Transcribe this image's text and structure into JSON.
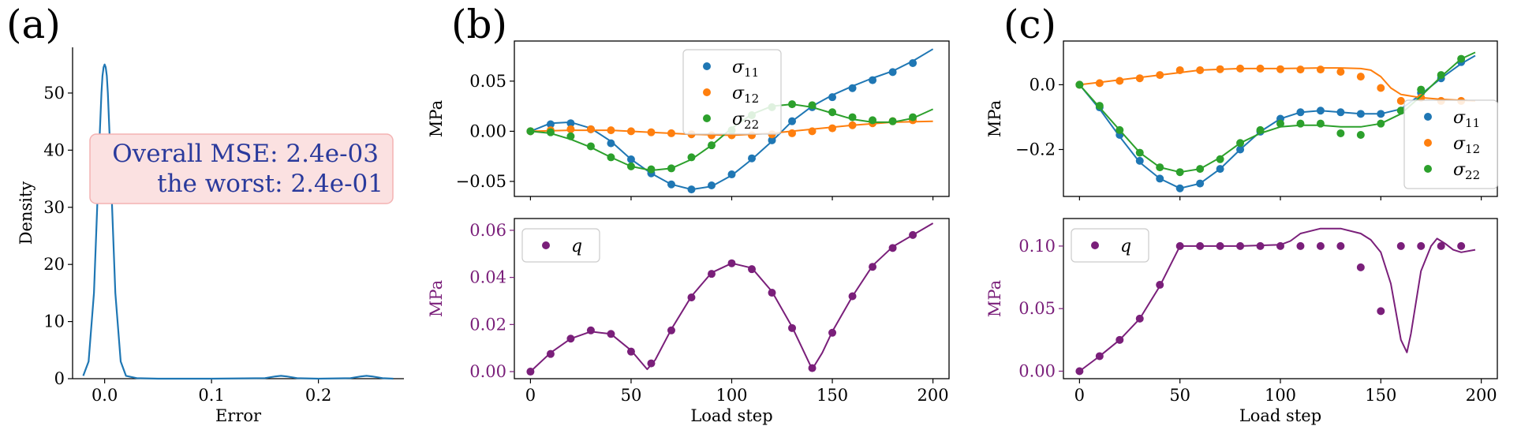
{
  "panel_labels": [
    "(a)",
    "(b)",
    "(c)"
  ],
  "colors": {
    "blue": "#1f77b4",
    "orange": "#ff7f0e",
    "green": "#2ca02c",
    "purple": "#7a1f7a",
    "annotation_fill": "#fbe1e1",
    "annotation_border": "#f4b3b3",
    "annotation_text": "#2a3a9c"
  },
  "chart_data": [
    {
      "id": "a",
      "type": "line",
      "xlabel": "Error",
      "ylabel": "Density",
      "xlim": [
        -0.03,
        0.28
      ],
      "ylim": [
        0,
        58
      ],
      "xticks": [
        0.0,
        0.1,
        0.2
      ],
      "xtick_labels": [
        "0.0",
        "0.1",
        "0.2"
      ],
      "yticks": [
        0,
        10,
        20,
        30,
        40,
        50
      ],
      "grid": false,
      "annotation": [
        "Overall MSE: 2.4e-03",
        "the worst: 2.4e-01"
      ],
      "x": [
        -0.02,
        -0.015,
        -0.01,
        -0.007,
        -0.005,
        -0.003,
        -0.002,
        -0.001,
        0.0,
        0.001,
        0.002,
        0.003,
        0.005,
        0.007,
        0.01,
        0.015,
        0.02,
        0.03,
        0.05,
        0.1,
        0.15,
        0.16,
        0.165,
        0.17,
        0.18,
        0.2,
        0.23,
        0.24,
        0.245,
        0.25,
        0.26,
        0.27
      ],
      "y": [
        0.5,
        3,
        15,
        30,
        41,
        50,
        53,
        54.5,
        55,
        54.5,
        53,
        50,
        41,
        30,
        15,
        3,
        0.5,
        0.1,
        0,
        0,
        0.1,
        0.4,
        0.5,
        0.4,
        0.1,
        0,
        0.1,
        0.4,
        0.5,
        0.4,
        0.1,
        0
      ]
    },
    {
      "id": "b-top",
      "type": "line",
      "ylabel": "MPa",
      "xlim": [
        -8,
        208
      ],
      "ylim": [
        -0.065,
        0.09
      ],
      "yticks": [
        -0.05,
        0.0,
        0.05
      ],
      "ytick_labels": [
        "−0.05",
        "0.00",
        "0.05"
      ],
      "legend_placement": "top-center",
      "series": [
        {
          "name": "σ",
          "sub": "11",
          "color": "blue",
          "line_x": [
            0,
            10,
            20,
            30,
            40,
            50,
            60,
            70,
            80,
            90,
            100,
            110,
            120,
            130,
            140,
            150,
            160,
            170,
            180,
            190,
            200
          ],
          "line_y": [
            0,
            0.008,
            0.009,
            0.003,
            -0.01,
            -0.028,
            -0.042,
            -0.053,
            -0.058,
            -0.055,
            -0.044,
            -0.028,
            -0.01,
            0.01,
            0.025,
            0.036,
            0.045,
            0.053,
            0.06,
            0.07,
            0.082
          ],
          "points_x": [
            0,
            10,
            20,
            30,
            40,
            50,
            60,
            70,
            80,
            90,
            100,
            110,
            120,
            130,
            140,
            150,
            160,
            170,
            180,
            190
          ],
          "points_y": [
            0,
            0.007,
            0.008,
            0.002,
            -0.012,
            -0.028,
            -0.042,
            -0.053,
            -0.058,
            -0.054,
            -0.043,
            -0.027,
            -0.009,
            0.01,
            0.024,
            0.034,
            0.043,
            0.051,
            0.059,
            0.068
          ]
        },
        {
          "name": "σ",
          "sub": "12",
          "color": "orange",
          "line_x": [
            0,
            20,
            40,
            60,
            80,
            100,
            120,
            140,
            160,
            180,
            200
          ],
          "line_y": [
            0,
            0.001,
            0.001,
            -0.001,
            -0.003,
            -0.004,
            -0.002,
            0.002,
            0.006,
            0.009,
            0.01
          ],
          "points_x": [
            0,
            10,
            20,
            30,
            40,
            50,
            60,
            70,
            80,
            90,
            100,
            110,
            120,
            130,
            140,
            150,
            160,
            170,
            180,
            190
          ],
          "points_y": [
            0,
            0.001,
            0.002,
            0.002,
            0.001,
            0,
            -0.001,
            -0.002,
            -0.003,
            -0.004,
            -0.004,
            -0.004,
            -0.003,
            -0.002,
            0,
            0.003,
            0.006,
            0.008,
            0.01,
            0.011
          ]
        },
        {
          "name": "σ",
          "sub": "22",
          "color": "green",
          "line_x": [
            0,
            10,
            20,
            30,
            40,
            50,
            60,
            70,
            80,
            90,
            100,
            110,
            120,
            130,
            140,
            150,
            160,
            170,
            180,
            190,
            200
          ],
          "line_y": [
            0,
            -0.002,
            -0.008,
            -0.016,
            -0.026,
            -0.035,
            -0.039,
            -0.037,
            -0.028,
            -0.014,
            0.003,
            0.017,
            0.025,
            0.027,
            0.024,
            0.018,
            0.012,
            0.009,
            0.009,
            0.013,
            0.022
          ],
          "points_x": [
            0,
            10,
            20,
            30,
            40,
            50,
            60,
            70,
            80,
            90,
            100,
            110,
            120,
            130,
            140,
            150,
            160,
            170,
            180,
            190
          ],
          "points_y": [
            0,
            -0.001,
            -0.005,
            -0.015,
            -0.026,
            -0.035,
            -0.038,
            -0.037,
            -0.026,
            -0.014,
            0.001,
            0.016,
            0.024,
            0.027,
            0.026,
            0.019,
            0.014,
            0.011,
            0.01,
            0.014
          ]
        }
      ]
    },
    {
      "id": "b-bottom",
      "type": "line",
      "xlabel": "Load step",
      "ylabel": "MPa",
      "xlim": [
        -8,
        208
      ],
      "ylim": [
        -0.003,
        0.065
      ],
      "xticks": [
        0,
        50,
        100,
        150,
        200
      ],
      "yticks": [
        0.0,
        0.02,
        0.04,
        0.06
      ],
      "ytick_labels": [
        "0.00",
        "0.02",
        "0.04",
        "0.06"
      ],
      "legend_placement": "top-left",
      "series": [
        {
          "name": "q",
          "color": "purple",
          "line_x": [
            0,
            10,
            20,
            30,
            40,
            50,
            55,
            58,
            62,
            70,
            80,
            90,
            100,
            110,
            120,
            130,
            135,
            140,
            145,
            150,
            160,
            170,
            180,
            190,
            200
          ],
          "line_y": [
            0,
            0.008,
            0.014,
            0.017,
            0.016,
            0.009,
            0.004,
            0.001,
            0.005,
            0.018,
            0.032,
            0.042,
            0.046,
            0.044,
            0.034,
            0.019,
            0.01,
            0.001,
            0.008,
            0.017,
            0.032,
            0.045,
            0.053,
            0.058,
            0.063
          ],
          "points_x": [
            0,
            10,
            20,
            30,
            40,
            50,
            60,
            70,
            80,
            90,
            100,
            110,
            120,
            130,
            140,
            150,
            160,
            170,
            180,
            190
          ],
          "points_y": [
            0,
            0.0075,
            0.014,
            0.0175,
            0.016,
            0.0085,
            0.0035,
            0.0175,
            0.0315,
            0.0415,
            0.046,
            0.0435,
            0.0335,
            0.0185,
            0.0015,
            0.0165,
            0.032,
            0.0445,
            0.0525,
            0.058
          ]
        }
      ]
    },
    {
      "id": "c-top",
      "type": "line",
      "ylabel": "MPa",
      "xlim": [
        -8,
        208
      ],
      "ylim": [
        -0.345,
        0.135
      ],
      "yticks": [
        -0.2,
        0.0
      ],
      "ytick_labels": [
        "−0.2",
        "0.0"
      ],
      "legend_placement": "right",
      "series": [
        {
          "name": "σ",
          "sub": "11",
          "color": "blue",
          "line_x": [
            0,
            10,
            20,
            30,
            40,
            50,
            60,
            70,
            80,
            90,
            100,
            110,
            120,
            130,
            140,
            150,
            160,
            170,
            180,
            190,
            197
          ],
          "line_y": [
            0,
            -0.075,
            -0.16,
            -0.24,
            -0.29,
            -0.32,
            -0.305,
            -0.26,
            -0.2,
            -0.145,
            -0.105,
            -0.085,
            -0.08,
            -0.085,
            -0.09,
            -0.09,
            -0.075,
            -0.03,
            0.02,
            0.065,
            0.09
          ],
          "points_x": [
            0,
            10,
            20,
            30,
            40,
            50,
            60,
            70,
            80,
            90,
            100,
            110,
            120,
            130,
            140,
            150,
            160,
            170,
            180,
            190
          ],
          "points_y": [
            0,
            -0.07,
            -0.155,
            -0.235,
            -0.29,
            -0.32,
            -0.305,
            -0.26,
            -0.2,
            -0.145,
            -0.105,
            -0.085,
            -0.08,
            -0.085,
            -0.09,
            -0.09,
            -0.08,
            -0.025,
            0.02,
            0.07
          ]
        },
        {
          "name": "σ",
          "sub": "12",
          "color": "orange",
          "line_x": [
            0,
            20,
            40,
            60,
            80,
            100,
            120,
            130,
            140,
            145,
            150,
            155,
            160,
            170,
            180,
            190,
            197
          ],
          "line_y": [
            0,
            0.015,
            0.03,
            0.045,
            0.05,
            0.05,
            0.052,
            0.052,
            0.05,
            0.045,
            0.025,
            -0.01,
            -0.03,
            -0.04,
            -0.045,
            -0.048,
            -0.05
          ],
          "points_x": [
            0,
            10,
            20,
            30,
            40,
            50,
            60,
            70,
            80,
            90,
            100,
            110,
            120,
            130,
            140,
            150,
            160,
            170,
            180,
            190
          ],
          "points_y": [
            0,
            0.005,
            0.012,
            0.02,
            0.03,
            0.045,
            0.045,
            0.048,
            0.05,
            0.05,
            0.048,
            0.047,
            0.047,
            0.04,
            0.025,
            -0.01,
            -0.05,
            -0.04,
            -0.05,
            -0.05
          ]
        },
        {
          "name": "σ",
          "sub": "22",
          "color": "green",
          "line_x": [
            0,
            10,
            20,
            30,
            40,
            50,
            60,
            70,
            80,
            90,
            100,
            110,
            120,
            130,
            140,
            150,
            160,
            170,
            180,
            190,
            197
          ],
          "line_y": [
            0,
            -0.07,
            -0.14,
            -0.21,
            -0.255,
            -0.27,
            -0.26,
            -0.225,
            -0.18,
            -0.15,
            -0.13,
            -0.125,
            -0.125,
            -0.13,
            -0.13,
            -0.12,
            -0.09,
            -0.035,
            0.025,
            0.08,
            0.1
          ],
          "points_x": [
            0,
            10,
            20,
            30,
            40,
            50,
            60,
            70,
            80,
            90,
            100,
            110,
            120,
            130,
            140,
            150,
            160,
            170,
            180,
            190
          ],
          "points_y": [
            0,
            -0.065,
            -0.14,
            -0.21,
            -0.255,
            -0.27,
            -0.26,
            -0.23,
            -0.18,
            -0.14,
            -0.12,
            -0.12,
            -0.12,
            -0.15,
            -0.155,
            -0.12,
            -0.08,
            -0.015,
            0.03,
            0.08
          ]
        }
      ]
    },
    {
      "id": "c-bottom",
      "type": "line",
      "xlabel": "Load step",
      "ylabel": "MPa",
      "xlim": [
        -8,
        208
      ],
      "ylim": [
        -0.006,
        0.122
      ],
      "xticks": [
        0,
        50,
        100,
        150,
        200
      ],
      "yticks": [
        0.0,
        0.05,
        0.1
      ],
      "ytick_labels": [
        "0.00",
        "0.05",
        "0.10"
      ],
      "legend_placement": "top-left",
      "series": [
        {
          "name": "q",
          "color": "purple",
          "line_x": [
            0,
            10,
            20,
            30,
            40,
            50,
            60,
            80,
            100,
            105,
            110,
            120,
            130,
            140,
            145,
            150,
            155,
            160,
            163,
            165,
            170,
            175,
            178,
            182,
            186,
            190,
            197
          ],
          "line_y": [
            0,
            0.012,
            0.025,
            0.042,
            0.068,
            0.1,
            0.1,
            0.1,
            0.101,
            0.104,
            0.11,
            0.114,
            0.114,
            0.11,
            0.105,
            0.095,
            0.07,
            0.025,
            0.015,
            0.03,
            0.08,
            0.1,
            0.106,
            0.102,
            0.097,
            0.095,
            0.097
          ],
          "points_x": [
            0,
            10,
            20,
            30,
            40,
            50,
            60,
            70,
            80,
            90,
            100,
            110,
            120,
            130,
            140,
            150,
            160,
            170,
            180,
            190
          ],
          "points_y": [
            0,
            0.012,
            0.025,
            0.042,
            0.069,
            0.1,
            0.1,
            0.1,
            0.1,
            0.1,
            0.1,
            0.1,
            0.1,
            0.1,
            0.083,
            0.048,
            0.1,
            0.1,
            0.1,
            0.1
          ]
        }
      ]
    }
  ]
}
